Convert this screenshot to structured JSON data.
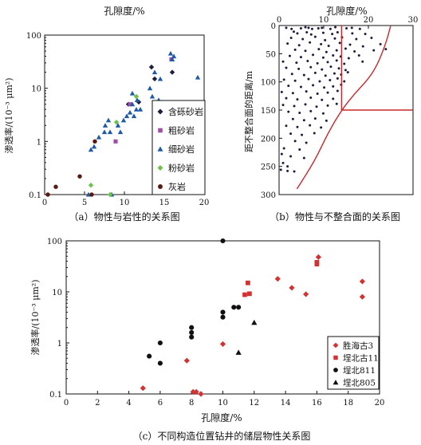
{
  "chart_data": [
    {
      "type": "scatter",
      "panel": "a",
      "caption": "（a）物性与岩性的关系图",
      "title": "孔隙度/%",
      "ylabel": "渗透率/(10⁻³ μm²)",
      "xlim": [
        0,
        20
      ],
      "ylim": [
        0.1,
        100
      ],
      "yscale": "log",
      "xticks": [
        "0",
        "5",
        "10",
        "15",
        "20"
      ],
      "yticks": [
        "0.1",
        "1",
        "10",
        "100"
      ],
      "legend_position": "bottom-right",
      "series": [
        {
          "name": "含砾砂岩",
          "marker": "diamond",
          "color": "#1e1e3c",
          "points": [
            [
              13.4,
              25
            ],
            [
              16,
              20
            ],
            [
              13.8,
              15
            ],
            [
              11.8,
              5.5
            ],
            [
              10.5,
              5
            ]
          ]
        },
        {
          "name": "粗砂岩",
          "marker": "square",
          "color": "#a04ea8",
          "points": [
            [
              15.9,
              35
            ],
            [
              10.7,
              5
            ],
            [
              8.9,
              1
            ]
          ]
        },
        {
          "name": "细砂岩",
          "marker": "triangle",
          "color": "#1f5aa8",
          "points": [
            [
              15.8,
              45
            ],
            [
              16.2,
              40
            ],
            [
              16,
              35
            ],
            [
              13.8,
              20
            ],
            [
              14.5,
              15
            ],
            [
              13.2,
              10
            ],
            [
              19.2,
              16
            ],
            [
              13.5,
              7
            ],
            [
              11,
              8
            ],
            [
              11.6,
              6
            ],
            [
              14.3,
              6
            ],
            [
              14.8,
              5
            ],
            [
              11,
              5
            ],
            [
              11.5,
              4
            ],
            [
              12,
              4
            ],
            [
              10.3,
              3
            ],
            [
              10.7,
              3.5
            ],
            [
              11.2,
              3
            ],
            [
              9.9,
              2.5
            ],
            [
              8,
              2.5
            ],
            [
              7.6,
              2
            ],
            [
              9.2,
              2
            ],
            [
              9.5,
              1.5
            ],
            [
              7.5,
              1.5
            ],
            [
              6.8,
              1.2
            ],
            [
              8.2,
              1.5
            ],
            [
              6.2,
              0.8
            ],
            [
              5.8,
              0.7
            ],
            [
              5.5,
              0.1
            ],
            [
              8.4,
              0.1
            ]
          ]
        },
        {
          "name": "粉砂岩",
          "marker": "diamond",
          "color": "#6cc24a",
          "points": [
            [
              11.5,
              7
            ],
            [
              9,
              2.3
            ],
            [
              5.8,
              0.15
            ],
            [
              8.2,
              0.1
            ]
          ]
        },
        {
          "name": "灰岩",
          "marker": "circle",
          "color": "#5a1a14",
          "points": [
            [
              6.3,
              1
            ],
            [
              4.4,
              0.22
            ],
            [
              1.4,
              0.14
            ],
            [
              0.4,
              0.1
            ],
            [
              5.9,
              0.1
            ]
          ]
        }
      ]
    },
    {
      "type": "scatter",
      "panel": "b",
      "caption": "（b）物性与不整合面的关系图",
      "title": "孔隙度/%",
      "ylabel": "距不整合面的距离/m",
      "xlim": [
        0,
        30
      ],
      "ylim": [
        0,
        300
      ],
      "yaxis": "inverted",
      "xticks": [
        "0",
        "10",
        "20",
        "30"
      ],
      "yticks": [
        "0",
        "50",
        "100",
        "150",
        "200",
        "250",
        "300"
      ],
      "series": [
        {
          "name": "",
          "marker": "dot",
          "color": "#1e1e3c",
          "points": "dense-cloud",
          "points_list": [
            [
              1.6,
              4
            ],
            [
              2.8,
              6
            ],
            [
              4.9,
              5
            ],
            [
              5.9,
              3
            ],
            [
              6.6,
              4
            ],
            [
              7.4,
              6
            ],
            [
              8.8,
              5
            ],
            [
              9.6,
              4
            ],
            [
              11.5,
              6
            ],
            [
              12.6,
              3
            ],
            [
              15.1,
              5
            ],
            [
              16.3,
              4
            ],
            [
              18.1,
              6
            ],
            [
              3.3,
              11
            ],
            [
              4.1,
              14
            ],
            [
              6.2,
              12
            ],
            [
              7.2,
              16
            ],
            [
              9.9,
              13
            ],
            [
              11.9,
              15
            ],
            [
              13.1,
              12
            ],
            [
              16.4,
              14
            ],
            [
              19.3,
              15
            ],
            [
              2.7,
              22
            ],
            [
              5.3,
              24
            ],
            [
              8.1,
              20
            ],
            [
              10.3,
              26
            ],
            [
              12.5,
              23
            ],
            [
              14.1,
              21
            ],
            [
              17.3,
              24
            ],
            [
              20.7,
              22
            ],
            [
              1.9,
              32
            ],
            [
              4.5,
              35
            ],
            [
              6.9,
              30
            ],
            [
              9.4,
              33
            ],
            [
              11.1,
              36
            ],
            [
              13.6,
              31
            ],
            [
              15.9,
              34
            ],
            [
              18.8,
              37
            ],
            [
              22.7,
              33
            ],
            [
              3.6,
              43
            ],
            [
              5.9,
              45
            ],
            [
              8.9,
              42
            ],
            [
              10.6,
              47
            ],
            [
              12.9,
              44
            ],
            [
              14.9,
              41
            ],
            [
              16.9,
              46
            ],
            [
              21.2,
              44
            ],
            [
              23.9,
              42
            ],
            [
              2.4,
              54
            ],
            [
              4.9,
              56
            ],
            [
              7.6,
              52
            ],
            [
              9.9,
              57
            ],
            [
              12.1,
              53
            ],
            [
              13.8,
              55
            ],
            [
              15.6,
              58
            ],
            [
              17.9,
              53
            ],
            [
              0.9,
              64
            ],
            [
              3.9,
              66
            ],
            [
              6.4,
              63
            ],
            [
              8.6,
              67
            ],
            [
              10.9,
              65
            ],
            [
              12.9,
              62
            ],
            [
              14.6,
              68
            ],
            [
              18.7,
              64
            ],
            [
              1.6,
              75
            ],
            [
              4.4,
              77
            ],
            [
              7.1,
              74
            ],
            [
              9.6,
              78
            ],
            [
              11.6,
              73
            ],
            [
              13.4,
              76
            ],
            [
              14.9,
              79
            ],
            [
              2.9,
              86
            ],
            [
              5.6,
              88
            ],
            [
              8.1,
              84
            ],
            [
              10.4,
              89
            ],
            [
              12.4,
              85
            ],
            [
              13.9,
              87
            ],
            [
              15.4,
              83
            ],
            [
              1.1,
              96
            ],
            [
              3.6,
              98
            ],
            [
              6.6,
              95
            ],
            [
              9.1,
              99
            ],
            [
              11.4,
              97
            ],
            [
              13.1,
              94
            ],
            [
              14.6,
              99
            ],
            [
              2.1,
              107
            ],
            [
              4.9,
              109
            ],
            [
              7.6,
              106
            ],
            [
              10.1,
              110
            ],
            [
              12.1,
              108
            ],
            [
              13.9,
              105
            ],
            [
              0.6,
              118
            ],
            [
              3.1,
              120
            ],
            [
              6.1,
              117
            ],
            [
              8.6,
              121
            ],
            [
              10.9,
              119
            ],
            [
              13.1,
              116
            ],
            [
              1.6,
              129
            ],
            [
              4.1,
              131
            ],
            [
              7.1,
              128
            ],
            [
              9.6,
              132
            ],
            [
              12.1,
              130
            ],
            [
              0.9,
              141
            ],
            [
              3.4,
              143
            ],
            [
              5.9,
              140
            ],
            [
              8.4,
              144
            ],
            [
              10.9,
              142
            ],
            [
              12.9,
              139
            ],
            [
              2.1,
              153
            ],
            [
              4.6,
              155
            ],
            [
              7.1,
              152
            ],
            [
              9.9,
              156
            ],
            [
              3.1,
              166
            ],
            [
              5.6,
              168
            ],
            [
              8.1,
              165
            ],
            [
              10.6,
              169
            ],
            [
              1.6,
              178
            ],
            [
              4.1,
              180
            ],
            [
              6.9,
              177
            ],
            [
              9.4,
              181
            ],
            [
              2.6,
              192
            ],
            [
              5.1,
              194
            ],
            [
              7.9,
              191
            ],
            [
              3.6,
              205
            ],
            [
              6.1,
              208
            ],
            [
              1.1,
              218
            ],
            [
              4.6,
              220
            ],
            [
              0.6,
              228
            ],
            [
              2.6,
              232
            ],
            [
              5.6,
              235
            ],
            [
              0.9,
              244
            ],
            [
              1.9,
              250
            ],
            [
              0.4,
              256
            ],
            [
              1.9,
              258
            ],
            [
              3.4,
              259
            ]
          ]
        }
      ],
      "annotations": [
        {
          "type": "vertical-line",
          "x": 14,
          "y_from": 0,
          "y_to": 150
        },
        {
          "type": "horizontal-line",
          "y": 150,
          "x_from": 14,
          "x_to": 30
        },
        {
          "type": "curve",
          "points": [
            [
              4,
              290
            ],
            [
              8,
              240
            ],
            [
              11,
              190
            ],
            [
              14,
              150
            ],
            [
              17,
              120
            ],
            [
              20,
              95
            ],
            [
              22,
              70
            ],
            [
              24,
              30
            ],
            [
              25,
              0
            ]
          ]
        }
      ],
      "curve_color": "#c8282d"
    },
    {
      "type": "scatter",
      "panel": "c",
      "caption": "（c）不同构造位置钻井的储层物性关系图",
      "xlabel": "孔隙度/%",
      "ylabel": "渗透率/(10⁻³ μm²)",
      "xlim": [
        0,
        20
      ],
      "ylim": [
        0.1,
        100
      ],
      "yscale": "log",
      "xticks": [
        "0",
        "2",
        "4",
        "6",
        "8",
        "10",
        "12",
        "14",
        "16",
        "18",
        "20"
      ],
      "yticks": [
        "0.1",
        "1",
        "10",
        "100"
      ],
      "legend_position": "bottom-right",
      "series": [
        {
          "name": "胜海古3",
          "marker": "diamond",
          "color": "#d23232",
          "points": [
            [
              4.9,
              0.13
            ],
            [
              7.7,
              0.45
            ],
            [
              8.1,
              0.11
            ],
            [
              8.3,
              0.11
            ],
            [
              8.6,
              0.1
            ],
            [
              10,
              0.95
            ],
            [
              13.5,
              18
            ],
            [
              14.4,
              12
            ],
            [
              15.3,
              9
            ],
            [
              16.1,
              48
            ],
            [
              18.9,
              16
            ],
            [
              18.9,
              8
            ]
          ]
        },
        {
          "name": "埕北古11",
          "marker": "square",
          "color": "#d23232",
          "points": [
            [
              11.4,
              8.8
            ],
            [
              11.7,
              9.2
            ],
            [
              11.6,
              15
            ],
            [
              16,
              38
            ],
            [
              16,
              35
            ]
          ]
        },
        {
          "name": "埕北811",
          "marker": "circle",
          "color": "#111111",
          "points": [
            [
              10,
              100
            ],
            [
              10,
              4
            ],
            [
              10,
              3.2
            ],
            [
              10.7,
              5
            ],
            [
              11,
              5
            ],
            [
              8,
              2
            ],
            [
              8,
              1.6
            ],
            [
              8,
              1.3
            ],
            [
              6,
              1
            ],
            [
              6,
              0.4
            ],
            [
              5.3,
              0.55
            ]
          ]
        },
        {
          "name": "埕北805",
          "marker": "triangle",
          "color": "#111111",
          "points": [
            [
              12,
              2.5
            ],
            [
              11,
              0.65
            ]
          ]
        }
      ]
    }
  ],
  "panel_a": {
    "title": "孔隙度/%",
    "ylabel": "渗透率/(10⁻³ μm²)",
    "caption": "（a）物性与岩性的关系图",
    "legend": [
      "含砾砂岩",
      "粗砂岩",
      "细砂岩",
      "粉砂岩",
      "灰岩"
    ]
  },
  "panel_b": {
    "title": "孔隙度/%",
    "ylabel": "距不整合面的距离/m",
    "caption": "（b）物性与不整合面的关系图"
  },
  "panel_c": {
    "xlabel": "孔隙度/%",
    "ylabel": "渗透率/(10⁻³ μm²)",
    "caption": "（c）不同构造位置钻井的储层物性关系图",
    "legend": [
      "胜海古3",
      "埕北古11",
      "埕北811",
      "埕北805"
    ]
  }
}
